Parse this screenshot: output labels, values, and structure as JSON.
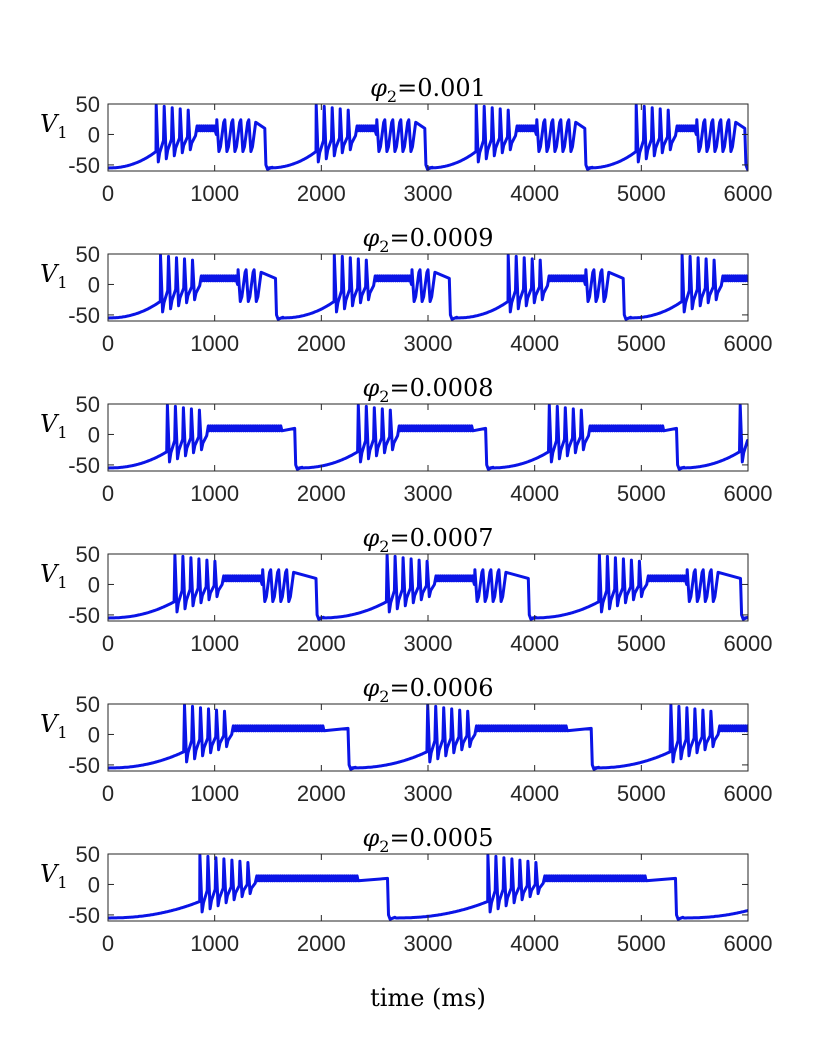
{
  "chart_data": {
    "type": "line",
    "xlabel": "time (ms)",
    "ylabel_symbol": "V",
    "ylabel_sub": "1",
    "xlim": [
      0,
      6000
    ],
    "ylim": [
      -60,
      50
    ],
    "xticks": [
      "0",
      "1000",
      "2000",
      "3000",
      "4000",
      "5000",
      "6000"
    ],
    "yticks": [
      "50",
      "0",
      "-50"
    ],
    "color": "#0a14e6",
    "panels": [
      {
        "phi_symbol": "φ",
        "phi_sub": "2",
        "phi_value": "=0.001",
        "period": 1500,
        "first_spike": 450,
        "spikes_a": 5,
        "plateau_len": 180,
        "spikes_b": 5,
        "burst_end": 1480
      },
      {
        "phi_symbol": "φ",
        "phi_sub": "2",
        "phi_value": "=0.0009",
        "period": 1630,
        "first_spike": 490,
        "spikes_a": 5,
        "plateau_len": 330,
        "spikes_b": 3,
        "burst_end": 1580
      },
      {
        "phi_symbol": "φ",
        "phi_sub": "2",
        "phi_value": "=0.0008",
        "period": 1790,
        "first_spike": 555,
        "spikes_a": 5,
        "plateau_len": 700,
        "spikes_b": 0,
        "burst_end": 1760
      },
      {
        "phi_symbol": "φ",
        "phi_sub": "2",
        "phi_value": "=0.0007",
        "period": 1990,
        "first_spike": 625,
        "spikes_a": 6,
        "plateau_len": 350,
        "spikes_b": 4,
        "burst_end": 1960
      },
      {
        "phi_symbol": "φ",
        "phi_sub": "2",
        "phi_value": "=0.0006",
        "period": 2280,
        "first_spike": 715,
        "spikes_a": 6,
        "plateau_len": 850,
        "spikes_b": 0,
        "burst_end": 2260
      },
      {
        "phi_symbol": "φ",
        "phi_sub": "2",
        "phi_value": "=0.0005",
        "period": 2700,
        "first_spike": 860,
        "spikes_a": 7,
        "plateau_len": 950,
        "spikes_b": 0,
        "burst_end": 2630
      }
    ]
  }
}
